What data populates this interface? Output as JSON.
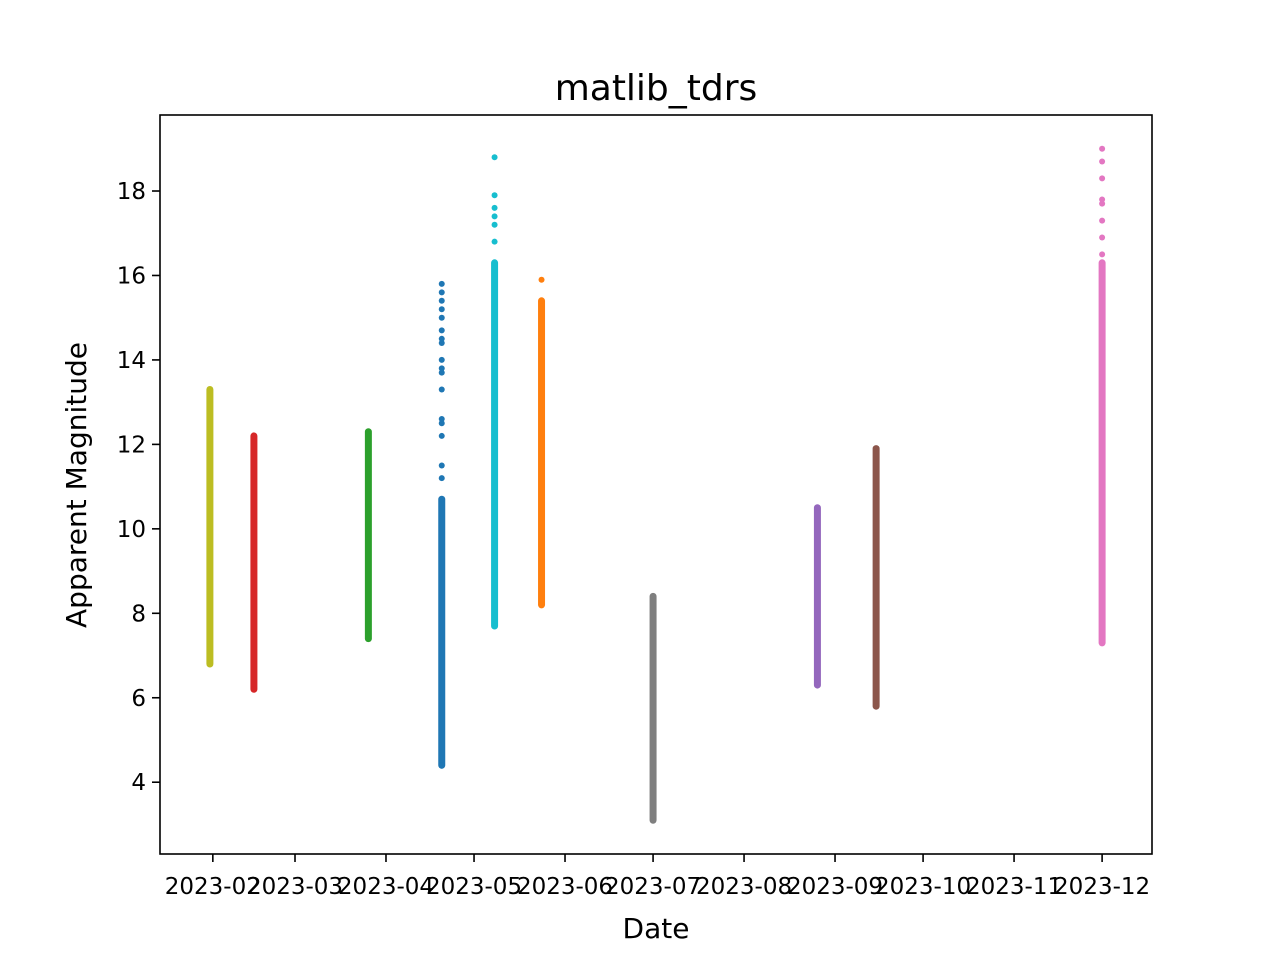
{
  "chart_data": {
    "type": "scatter",
    "title": "matlib_tdrs",
    "xlabel": "Date",
    "ylabel": "Apparent Magnitude",
    "xlim": [
      "2023-01-14",
      "2023-12-18"
    ],
    "ylim": [
      2.3,
      19.8
    ],
    "grid": false,
    "legend": null,
    "x_ticks": [
      "2023-02",
      "2023-03",
      "2023-04",
      "2023-05",
      "2023-06",
      "2023-07",
      "2023-08",
      "2023-09",
      "2023-10",
      "2023-11",
      "2023-12"
    ],
    "x_tick_labels": [
      "2023-02",
      "2023-03",
      "2023-04",
      "2023-05",
      "2023-06",
      "2023-07",
      "2023-08",
      "2023-09",
      "2023-10",
      "2023-11",
      "2023-12"
    ],
    "y_ticks": [
      4,
      6,
      8,
      10,
      12,
      14,
      16,
      18
    ],
    "y_tick_labels": [
      "4",
      "6",
      "8",
      "10",
      "12",
      "14",
      "16",
      "18"
    ],
    "series": [
      {
        "x": "2023-01-31",
        "color": "#bcbd22",
        "ymin": 6.8,
        "ymax": 13.3,
        "outliers": []
      },
      {
        "x": "2023-02-15",
        "color": "#d62728",
        "ymin": 6.2,
        "ymax": 12.2,
        "outliers": []
      },
      {
        "x": "2023-03-26",
        "color": "#2ca02c",
        "ymin": 7.4,
        "ymax": 12.3,
        "outliers": []
      },
      {
        "x": "2023-04-20",
        "color": "#1f77b4",
        "ymin": 4.4,
        "ymax": 10.7,
        "outliers": [
          11.2,
          11.5,
          12.2,
          12.5,
          12.6,
          13.3,
          13.7,
          13.8,
          14.0,
          14.4,
          14.5,
          14.7,
          15.0,
          15.2,
          15.4,
          15.6,
          15.8
        ]
      },
      {
        "x": "2023-05-08",
        "color": "#17becf",
        "ymin": 7.7,
        "ymax": 16.3,
        "outliers": [
          16.8,
          17.2,
          17.4,
          17.6,
          17.9,
          18.8
        ]
      },
      {
        "x": "2023-05-24",
        "color": "#ff7f0e",
        "ymin": 8.2,
        "ymax": 15.4,
        "outliers": [
          15.9
        ]
      },
      {
        "x": "2023-07-01",
        "color": "#7f7f7f",
        "ymin": 3.1,
        "ymax": 8.4,
        "outliers": []
      },
      {
        "x": "2023-08-26",
        "color": "#9467bd",
        "ymin": 6.3,
        "ymax": 10.5,
        "outliers": []
      },
      {
        "x": "2023-09-15",
        "color": "#8c564b",
        "ymin": 5.8,
        "ymax": 11.9,
        "outliers": []
      },
      {
        "x": "2023-12-01",
        "color": "#e377c2",
        "ymin": 7.3,
        "ymax": 16.3,
        "outliers": [
          16.5,
          16.9,
          17.3,
          17.7,
          17.8,
          18.3,
          18.7,
          19.0
        ]
      }
    ]
  }
}
